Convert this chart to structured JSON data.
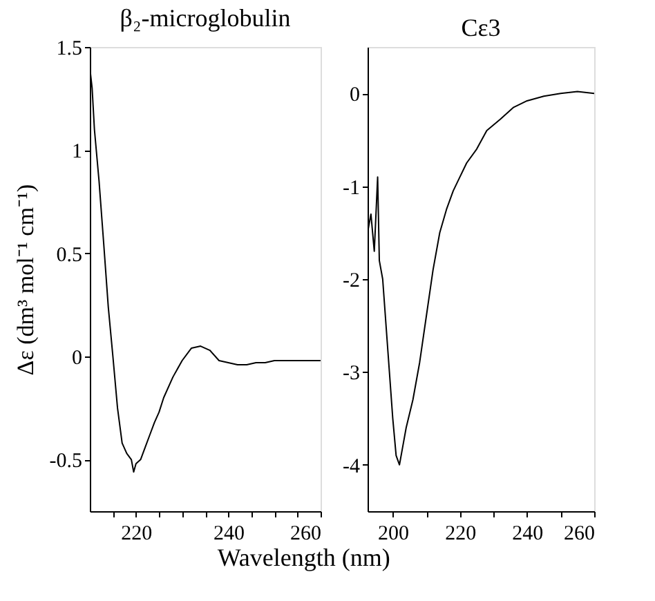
{
  "chart_data": [
    {
      "type": "line",
      "title": "β₂-microglobulin",
      "xlabel": "Wavelength (nm)",
      "ylabel": "Δε (dm³ mol⁻¹ cm⁻¹)",
      "xlim": [
        210,
        260
      ],
      "ylim": [
        -0.75,
        1.5
      ],
      "xticks": [
        {
          "value": 215,
          "label": null
        },
        220,
        {
          "value": 225,
          "label": null
        },
        {
          "value": 230,
          "label": null
        },
        {
          "value": 235,
          "label": null
        },
        240,
        {
          "value": 245,
          "label": null
        },
        {
          "value": 250,
          "label": null
        },
        {
          "value": 255,
          "label": null
        },
        260
      ],
      "yticks": [
        -0.5,
        0,
        0.5,
        1,
        1.5
      ],
      "grid": false,
      "marker": "none",
      "line_style": "solid",
      "x": [
        210,
        210.5,
        211,
        212,
        213,
        214,
        215,
        216,
        217,
        218,
        219,
        219.5,
        220,
        221,
        222,
        223,
        224,
        225,
        226,
        228,
        230,
        232,
        234,
        236,
        238,
        240,
        242,
        244,
        246,
        248,
        250,
        252,
        254,
        256,
        258,
        260
      ],
      "series": [
        {
          "color": "#000000",
          "values": [
            1.4,
            1.3,
            1.1,
            0.85,
            0.55,
            0.24,
            0.0,
            -0.25,
            -0.42,
            -0.47,
            -0.5,
            -0.56,
            -0.52,
            -0.5,
            -0.44,
            -0.38,
            -0.32,
            -0.27,
            -0.2,
            -0.1,
            -0.02,
            0.04,
            0.05,
            0.03,
            -0.02,
            -0.03,
            -0.04,
            -0.04,
            -0.03,
            -0.03,
            -0.02,
            -0.02,
            -0.02,
            -0.02,
            -0.02,
            -0.02
          ]
        }
      ]
    },
    {
      "type": "line",
      "title": "Cε3",
      "xlim": [
        192.5,
        260
      ],
      "ylim": [
        -4.5,
        0.5
      ],
      "xticks": [
        200,
        {
          "value": 210,
          "label": null
        },
        220,
        {
          "value": 230,
          "label": null
        },
        240,
        {
          "value": 250,
          "label": null
        },
        260
      ],
      "yticks": [
        -4,
        -3,
        -2,
        -1,
        0
      ],
      "grid": false,
      "marker": "none",
      "line_style": "solid",
      "x": [
        192.5,
        193.5,
        194.5,
        195.5,
        196,
        197,
        198,
        199,
        200,
        201,
        202,
        203,
        204,
        206,
        208,
        210,
        212,
        214,
        216,
        218,
        220,
        222,
        225,
        228,
        232,
        236,
        240,
        245,
        250,
        255,
        260
      ],
      "series": [
        {
          "color": "#000000",
          "values": [
            -1.5,
            -1.3,
            -1.7,
            -0.9,
            -1.8,
            -2.0,
            -2.5,
            -3.0,
            -3.5,
            -3.9,
            -4.0,
            -3.8,
            -3.6,
            -3.3,
            -2.9,
            -2.4,
            -1.9,
            -1.5,
            -1.25,
            -1.05,
            -0.9,
            -0.75,
            -0.6,
            -0.4,
            -0.28,
            -0.15,
            -0.08,
            -0.03,
            0.0,
            0.02,
            0.0
          ]
        }
      ]
    }
  ]
}
